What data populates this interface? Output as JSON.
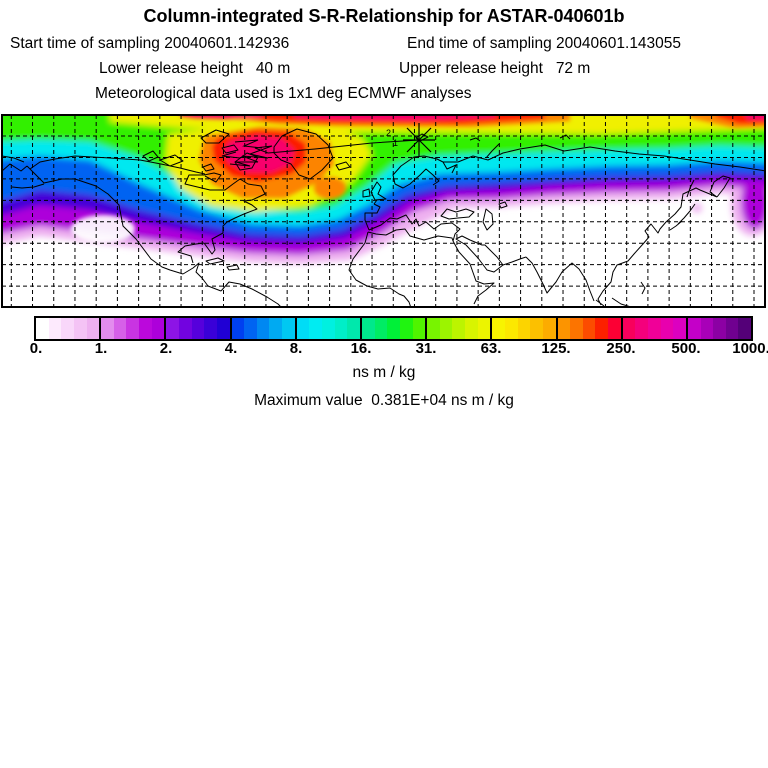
{
  "header": {
    "title": "Column-integrated S-R-Relationship for ASTAR-040601b",
    "start_time": "Start time of sampling 20040601.142936",
    "end_time": "End time of sampling 20040601.143055",
    "lower_release": "Lower release height   40 m",
    "upper_release": "Upper release height   72 m",
    "met_data": "Meteorological data used is 1x1 deg ECMWF analyses"
  },
  "map": {
    "projection": "equirectangular, lon -180..180, lat 0..90N",
    "graticule_spacing_deg": 10,
    "release_marker": "asterisk near Svalbard (approx 16E, 78N)",
    "track_labels": [
      "1",
      "2"
    ]
  },
  "chart_data": {
    "type": "heatmap",
    "title": "Column-integrated S-R-Relationship for ASTAR-040601b",
    "units_label": "ns m / kg",
    "units": "ns m / kg",
    "levels": [
      0,
      1,
      2,
      4,
      8,
      16,
      31,
      63,
      125,
      250,
      500,
      1000
    ],
    "level_labels": [
      "0.",
      "1.",
      "2.",
      "4.",
      "8.",
      "16.",
      "31.",
      "63.",
      "125.",
      "250.",
      "500.",
      "1000."
    ],
    "max_value": "0.381E+04",
    "max_value_line": "Maximum value  0.381E+04 ns m / kg",
    "legend_position": "bottom horizontal colorbar",
    "grid": "10 degree dashed graticule on map",
    "palette_segments": [
      {
        "from": 0,
        "to": 1,
        "colors": [
          "#ffffff",
          "#fdeafd",
          "#f9d7fa",
          "#f4c3f5",
          "#eeb0f0"
        ]
      },
      {
        "from": 1,
        "to": 2,
        "colors": [
          "#e38cee",
          "#d660e8",
          "#c934e2",
          "#bb08dc",
          "#ad00da"
        ]
      },
      {
        "from": 2,
        "to": 4,
        "colors": [
          "#8d14e6",
          "#7203e0",
          "#5600dc",
          "#3a00d8",
          "#2000d4"
        ]
      },
      {
        "from": 4,
        "to": 8,
        "colors": [
          "#0040f0",
          "#0064f2",
          "#0088f2",
          "#00aaf2",
          "#00c8f2"
        ]
      },
      {
        "from": 8,
        "to": 16,
        "colors": [
          "#00dcf6",
          "#00ecf2",
          "#00f0e0",
          "#00eec8",
          "#00e8ac"
        ]
      },
      {
        "from": 16,
        "to": 31,
        "colors": [
          "#00e88c",
          "#00ec64",
          "#00f038",
          "#20f410",
          "#50f400"
        ]
      },
      {
        "from": 31,
        "to": 63,
        "colors": [
          "#78f400",
          "#9cf400",
          "#bcf400",
          "#d8f400",
          "#ecf400"
        ]
      },
      {
        "from": 63,
        "to": 125,
        "colors": [
          "#f8f400",
          "#fce800",
          "#fcd400",
          "#fcc000",
          "#fcac00"
        ]
      },
      {
        "from": 125,
        "to": 250,
        "colors": [
          "#fc9400",
          "#fc7400",
          "#fc4c00",
          "#fc2000",
          "#fc0034"
        ]
      },
      {
        "from": 250,
        "to": 500,
        "colors": [
          "#f8005c",
          "#f4007c",
          "#f00098",
          "#e800ae",
          "#dc00c0"
        ]
      },
      {
        "from": 500,
        "to": 1000,
        "colors": [
          "#c400c8",
          "#a800b8",
          "#8c00a4",
          "#700090",
          "#540078"
        ]
      }
    ],
    "field_summary": "Column-integrated source-receptor sensitivity: maximum (red/magenta, >250) over the Canadian Arctic / Baffin region and along the 85-90N Arctic band; yellow-green plume (16-125) covers Canada, Greenland and the Arctic coast of Eurasia; cyan-blue-purple fringes (0.5-8) extend over the North Pacific, the mid-latitude North Atlantic and northern Europe/Siberia; values below ~0.5 (white) south of ~40N.",
    "release_point": {
      "campaign": "ASTAR-040601b",
      "approx_lon_deg": 16,
      "approx_lat_deg": 78
    }
  }
}
